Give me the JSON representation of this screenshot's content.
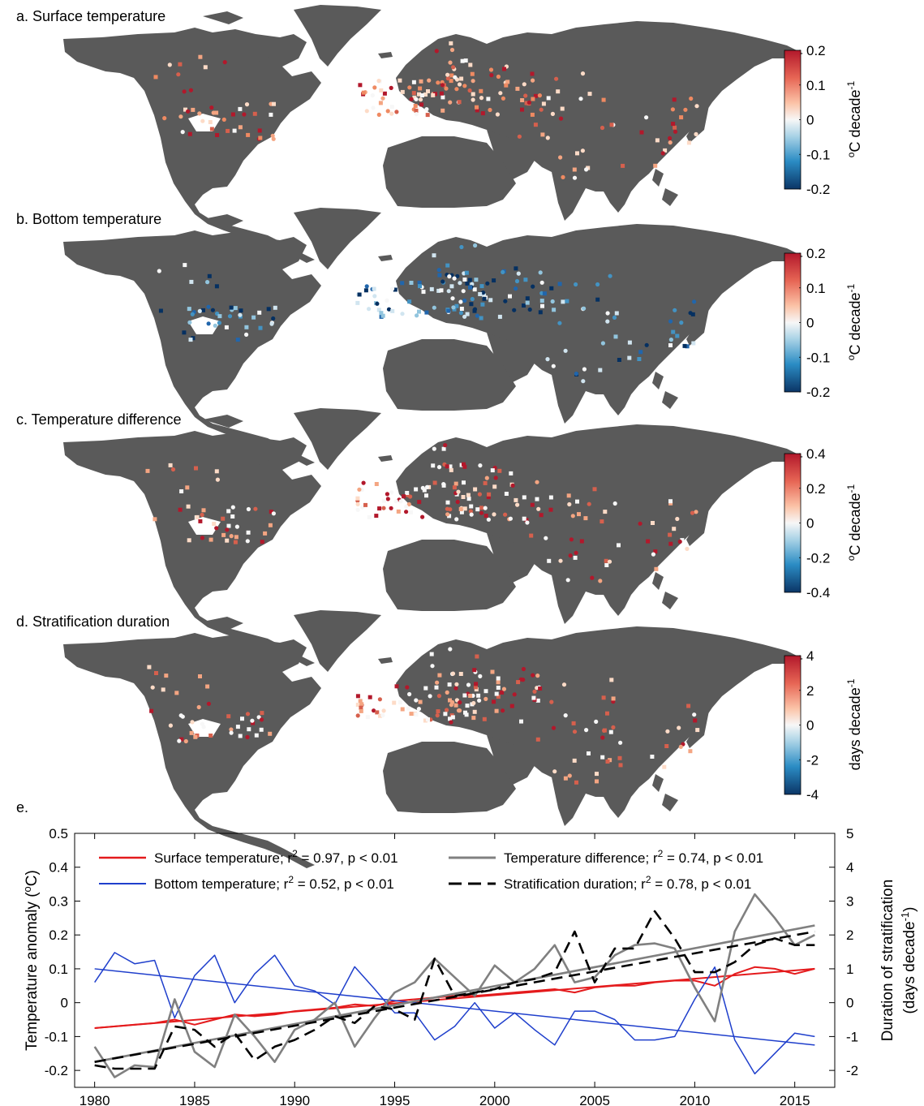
{
  "panels": [
    {
      "title": "a. Surface temperature",
      "colorbar": {
        "ticks": [
          "0.2",
          "0.1",
          "0",
          "-0.1",
          "-0.2"
        ],
        "unit_base": "C decade",
        "unit_pre": "o",
        "unit_sup": "-1"
      }
    },
    {
      "title": "b. Bottom temperature",
      "colorbar": {
        "ticks": [
          "0.2",
          "0.1",
          "0",
          "-0.1",
          "-0.2"
        ],
        "unit_base": "C decade",
        "unit_pre": "o",
        "unit_sup": "-1"
      }
    },
    {
      "title": "c. Temperature difference",
      "colorbar": {
        "ticks": [
          "0.4",
          "0.2",
          "0",
          "-0.2",
          "-0.4"
        ],
        "unit_base": "C decade",
        "unit_pre": "o",
        "unit_sup": "-1"
      }
    },
    {
      "title": "d. Stratification duration",
      "colorbar": {
        "ticks": [
          "4",
          "2",
          "0",
          "-2",
          "-4"
        ],
        "unit_base": "days decade",
        "unit_pre": "",
        "unit_sup": "-1"
      }
    }
  ],
  "colors": {
    "land": "#5a5a5a",
    "warm_dark": "#b2182b",
    "warm_mid": "#ef8a62",
    "warm_light": "#fddbc7",
    "neutral": "#f7f7f7",
    "cool_light": "#d1e5f0",
    "cool_mid": "#67a9cf",
    "cool_dark": "#053061",
    "surface": "#e41a1c",
    "bottom": "#1f3fcc",
    "difference": "#808080",
    "stratification": "#000000"
  },
  "chart_data": {
    "type": "line",
    "title": "e.",
    "x": [
      1980,
      1981,
      1982,
      1983,
      1984,
      1985,
      1986,
      1987,
      1988,
      1989,
      1990,
      1991,
      1992,
      1993,
      1994,
      1995,
      1996,
      1997,
      1998,
      1999,
      2000,
      2001,
      2002,
      2003,
      2004,
      2005,
      2006,
      2007,
      2008,
      2009,
      2010,
      2011,
      2012,
      2013,
      2014,
      2015,
      2016
    ],
    "xlim": [
      1979,
      2017
    ],
    "xticks": [
      "1980",
      "1985",
      "1990",
      "1995",
      "2000",
      "2005",
      "2010",
      "2015"
    ],
    "ylabel_left": "Temperature anomaly (",
    "ylabel_left_sup": "o",
    "ylabel_left_end": "C)",
    "ylim_left": [
      -0.25,
      0.5
    ],
    "yticks_left": [
      "0.5",
      "0.4",
      "0.3",
      "0.2",
      "0.1",
      "0",
      "-0.1",
      "-0.2"
    ],
    "ylabel_right_1": "Duration of stratification",
    "ylabel_right_2": "(days decade",
    "ylabel_right_sup": "-1",
    "ylabel_right_end": ")",
    "ylim_right": [
      -2.5,
      5
    ],
    "yticks_right": [
      "5",
      "4",
      "3",
      "2",
      "1",
      "0",
      "-1",
      "-2"
    ],
    "series": [
      {
        "name": "Surface temperature; r",
        "stat": " = 0.97, p < 0.01",
        "axis": "left",
        "trend": [
          -0.075,
          0.1
        ],
        "values": [
          -0.075,
          -0.07,
          -0.065,
          -0.06,
          -0.05,
          -0.065,
          -0.05,
          -0.035,
          -0.04,
          -0.035,
          -0.025,
          -0.02,
          -0.015,
          -0.005,
          -0.01,
          0.005,
          0.01,
          0.015,
          0.02,
          0.02,
          0.025,
          0.03,
          0.035,
          0.04,
          0.03,
          0.045,
          0.05,
          0.05,
          0.06,
          0.065,
          0.065,
          0.05,
          0.085,
          0.105,
          0.1,
          0.085,
          0.1
        ]
      },
      {
        "name": "Bottom temperature; r",
        "stat": " = 0.52, p < 0.01",
        "axis": "left",
        "trend": [
          0.1,
          -0.125
        ],
        "values": [
          0.06,
          0.148,
          0.115,
          0.125,
          -0.045,
          0.08,
          0.14,
          0.0,
          0.085,
          0.14,
          0.05,
          0.035,
          -0.005,
          0.106,
          0.04,
          -0.03,
          -0.03,
          -0.11,
          -0.07,
          0.0,
          -0.075,
          -0.03,
          -0.08,
          -0.125,
          -0.025,
          -0.025,
          -0.05,
          -0.11,
          -0.11,
          -0.1,
          0.01,
          0.105,
          -0.11,
          -0.21,
          -0.15,
          -0.09,
          -0.1
        ]
      },
      {
        "name": "Temperature difference; r",
        "stat": " = 0.74, p < 0.01",
        "axis": "left",
        "trend": [
          -0.175,
          0.228
        ],
        "values": [
          -0.13,
          -0.22,
          -0.185,
          -0.19,
          0.01,
          -0.145,
          -0.19,
          -0.035,
          -0.1,
          -0.175,
          -0.08,
          -0.05,
          0.0,
          -0.13,
          -0.045,
          0.03,
          0.06,
          0.13,
          0.075,
          0.02,
          0.11,
          0.06,
          0.1,
          0.17,
          0.06,
          0.075,
          0.14,
          0.17,
          0.175,
          0.16,
          0.045,
          -0.055,
          0.21,
          0.32,
          0.25,
          0.17,
          0.2
        ]
      },
      {
        "name": "Stratification duration; r",
        "stat": " = 0.78, p < 0.01",
        "axis": "right",
        "trend": [
          -1.75,
          2.1
        ],
        "values": [
          -1.85,
          -1.95,
          -1.95,
          -1.95,
          -0.7,
          -0.8,
          -1.3,
          -0.9,
          -1.7,
          -1.3,
          -1.1,
          -0.8,
          -0.4,
          -0.6,
          -0.1,
          -0.2,
          -0.5,
          1.3,
          0.2,
          0.3,
          0.4,
          0.6,
          0.7,
          0.9,
          2.1,
          0.6,
          1.6,
          1.6,
          2.7,
          1.9,
          0.9,
          0.9,
          1.2,
          1.7,
          1.9,
          1.7,
          1.7
        ]
      }
    ]
  }
}
